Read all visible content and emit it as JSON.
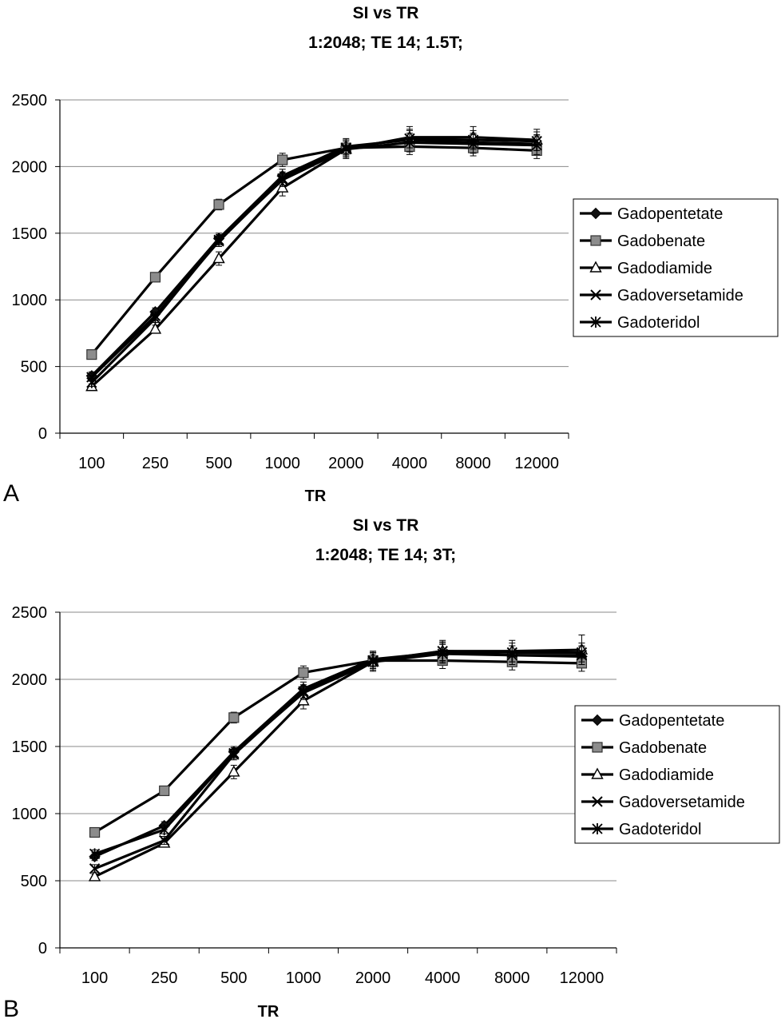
{
  "figure": {
    "panels": [
      {
        "letter": "A",
        "title_line1": "SI vs TR",
        "title_line2": "1:2048; TE 14; 1.5T;",
        "xlabel": "TR"
      },
      {
        "letter": "B",
        "title_line1": "SI vs TR",
        "title_line2": "1:2048; TE 14; 3T;",
        "xlabel": "TR"
      }
    ]
  },
  "chart_data": [
    {
      "type": "line",
      "title": "SI vs TR\n1:2048; TE 14; 1.5T;",
      "xlabel": "TR",
      "ylabel": "",
      "categories": [
        "100",
        "250",
        "500",
        "1000",
        "2000",
        "4000",
        "8000",
        "12000"
      ],
      "ylim": [
        0,
        2500
      ],
      "yticks": [
        "0",
        "500",
        "1000",
        "1500",
        "2000",
        "2500"
      ],
      "grid": true,
      "legend_position": "right",
      "series": [
        {
          "name": "Gadopentetate",
          "marker": "diamond",
          "values": [
            430,
            910,
            1460,
            1930,
            2150,
            2200,
            2180,
            2170
          ],
          "errors": [
            30,
            30,
            40,
            50,
            60,
            70,
            70,
            70
          ]
        },
        {
          "name": "Gadobenate",
          "marker": "square",
          "values": [
            590,
            1170,
            1715,
            2050,
            2140,
            2150,
            2140,
            2120
          ],
          "errors": [
            20,
            20,
            40,
            50,
            60,
            60,
            60,
            60
          ]
        },
        {
          "name": "Gadodiamide",
          "marker": "triangle",
          "values": [
            350,
            780,
            1310,
            1840,
            2130,
            2220,
            2220,
            2200
          ],
          "errors": [
            20,
            30,
            50,
            60,
            70,
            80,
            80,
            80
          ]
        },
        {
          "name": "Gadoversetamide",
          "marker": "x",
          "values": [
            420,
            880,
            1440,
            1910,
            2140,
            2210,
            2200,
            2190
          ],
          "errors": [
            30,
            30,
            40,
            50,
            60,
            70,
            70,
            70
          ]
        },
        {
          "name": "Gadoteridol",
          "marker": "asterisk",
          "values": [
            380,
            860,
            1450,
            1900,
            2130,
            2180,
            2170,
            2160
          ],
          "errors": [
            30,
            30,
            40,
            50,
            60,
            70,
            70,
            70
          ]
        }
      ]
    },
    {
      "type": "line",
      "title": "SI vs TR\n1:2048; TE 14; 3T;",
      "xlabel": "TR",
      "ylabel": "",
      "categories": [
        "100",
        "250",
        "500",
        "1000",
        "2000",
        "4000",
        "8000",
        "12000"
      ],
      "ylim": [
        0,
        2500
      ],
      "yticks": [
        "0",
        "500",
        "1000",
        "1500",
        "2000",
        "2500"
      ],
      "grid": true,
      "legend_position": "right",
      "series": [
        {
          "name": "Gadopentetate",
          "marker": "diamond",
          "values": [
            680,
            910,
            1460,
            1930,
            2150,
            2200,
            2180,
            2170
          ],
          "errors": [
            30,
            30,
            40,
            50,
            60,
            70,
            70,
            70
          ]
        },
        {
          "name": "Gadobenate",
          "marker": "square",
          "values": [
            860,
            1170,
            1715,
            2050,
            2140,
            2140,
            2130,
            2120
          ],
          "errors": [
            20,
            20,
            40,
            50,
            60,
            60,
            60,
            60
          ]
        },
        {
          "name": "Gadodiamide",
          "marker": "triangle",
          "values": [
            530,
            780,
            1310,
            1840,
            2130,
            2210,
            2210,
            2220
          ],
          "errors": [
            20,
            30,
            50,
            60,
            70,
            80,
            80,
            110
          ]
        },
        {
          "name": "Gadoversetamide",
          "marker": "x",
          "values": [
            590,
            800,
            1440,
            1910,
            2140,
            2210,
            2200,
            2200
          ],
          "errors": [
            30,
            30,
            40,
            50,
            60,
            70,
            70,
            70
          ]
        },
        {
          "name": "Gadoteridol",
          "marker": "asterisk",
          "values": [
            700,
            880,
            1450,
            1900,
            2130,
            2190,
            2180,
            2180
          ],
          "errors": [
            30,
            30,
            40,
            50,
            60,
            70,
            70,
            70
          ]
        }
      ]
    }
  ]
}
